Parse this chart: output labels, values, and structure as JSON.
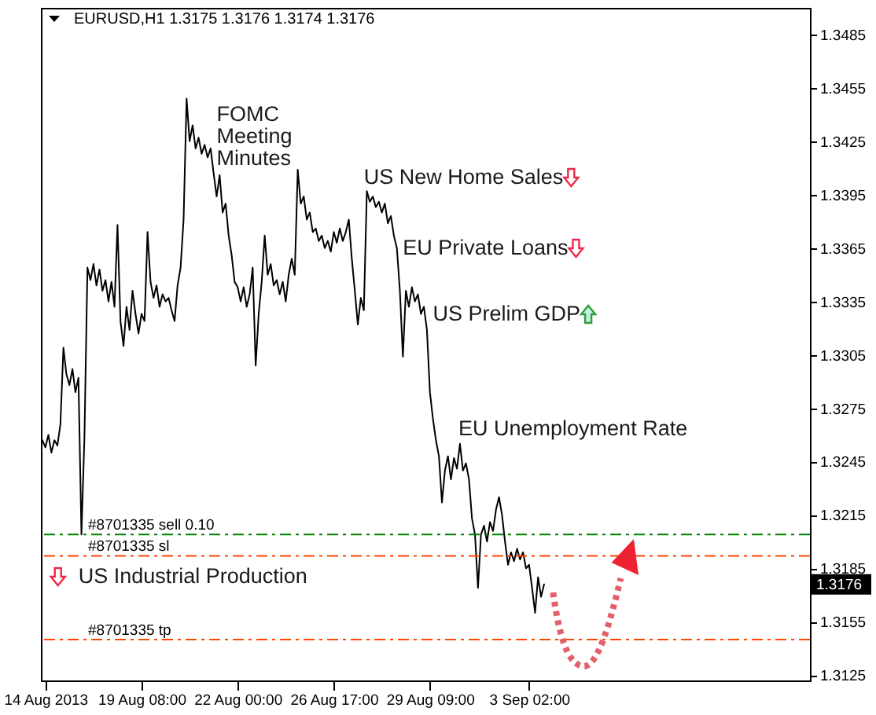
{
  "chart_data": {
    "type": "line",
    "title": "EURUSD,H1 1.3175 1.3176 1.3174 1.3176",
    "categories": [
      null,
      "14 Aug 2013",
      null,
      null,
      null,
      null,
      null,
      null,
      null,
      null,
      null,
      null,
      null,
      null,
      null,
      null,
      null,
      null,
      null,
      null,
      null,
      null,
      null,
      null,
      null,
      null,
      null,
      null,
      null,
      null,
      null,
      null,
      null,
      "19 Aug 08:00",
      null,
      null,
      null,
      null,
      null,
      null,
      null,
      null,
      null,
      null,
      null,
      null,
      null,
      null,
      null,
      null,
      null,
      null,
      null,
      null,
      null,
      null,
      null,
      null,
      null,
      null,
      null,
      null,
      null,
      null,
      null,
      "22 Aug 00:00",
      null,
      null,
      null,
      null,
      null,
      null,
      null,
      null,
      null,
      null,
      null,
      null,
      null,
      null,
      null,
      null,
      null,
      null,
      null,
      null,
      null,
      null,
      null,
      null,
      null,
      null,
      null,
      null,
      null,
      null,
      null,
      "26 Aug 17:00",
      null,
      null,
      null,
      null,
      null,
      null,
      null,
      null,
      null,
      null,
      null,
      null,
      null,
      null,
      null,
      null,
      null,
      null,
      null,
      null,
      null,
      null,
      null,
      null,
      null,
      null,
      null,
      null,
      null,
      null,
      null,
      "29 Aug 09:00",
      null,
      null,
      null,
      null,
      null,
      null,
      null,
      null,
      null,
      null,
      null,
      null,
      null,
      null,
      null,
      null,
      null,
      null,
      null,
      null,
      null,
      null,
      null,
      null,
      null,
      null,
      null,
      null,
      null,
      null,
      null,
      null,
      "3 Sep 02:00",
      null,
      null,
      null,
      null,
      null,
      null,
      null,
      null,
      null,
      null,
      null,
      null,
      null,
      null,
      null,
      null,
      null,
      null,
      null,
      null,
      null,
      null,
      null,
      null,
      null,
      null,
      null,
      null,
      null,
      null,
      null,
      null,
      null,
      null,
      null,
      null,
      null,
      null,
      null,
      null,
      null,
      null,
      null,
      null,
      null,
      null,
      null,
      null,
      null,
      null,
      null,
      null,
      null,
      null,
      null,
      null,
      null,
      null,
      null,
      null,
      null,
      null,
      null,
      null,
      null,
      null,
      null,
      null,
      null,
      null,
      null,
      null,
      null,
      null,
      null,
      null,
      null,
      null,
      null,
      null,
      null,
      null,
      null,
      null,
      null,
      null,
      null,
      null,
      null,
      null,
      null,
      null,
      null
    ],
    "series": [
      {
        "color": "#000000",
        "values": [
          1.3257,
          1.3253,
          1.326,
          1.325,
          1.3257,
          1.3254,
          1.3266,
          1.3309,
          1.3294,
          1.3288,
          1.3297,
          1.3284,
          1.3292,
          1.3204,
          1.3259,
          1.3354,
          1.3347,
          1.3356,
          1.3344,
          1.3353,
          1.3341,
          1.3347,
          1.3335,
          1.3346,
          1.3332,
          1.3378,
          1.3324,
          1.331,
          1.3332,
          1.3319,
          1.3341,
          1.3328,
          1.3317,
          1.3328,
          1.3324,
          1.3374,
          1.3346,
          1.3337,
          1.3344,
          1.3332,
          1.3339,
          1.3335,
          1.3337,
          1.333,
          1.3324,
          1.3344,
          1.3354,
          1.3381,
          1.3449,
          1.3425,
          1.3434,
          1.3421,
          1.3427,
          1.3418,
          1.3423,
          1.3416,
          1.3421,
          1.3407,
          1.3394,
          1.3406,
          1.3385,
          1.339,
          1.3372,
          1.3361,
          1.3346,
          1.3343,
          1.3335,
          1.3343,
          1.3332,
          1.3339,
          1.3354,
          1.3299,
          1.3328,
          1.3346,
          1.3372,
          1.335,
          1.3356,
          1.3344,
          1.3347,
          1.3339,
          1.3346,
          1.3335,
          1.335,
          1.3359,
          1.335,
          1.3409,
          1.339,
          1.3394,
          1.3381,
          1.3385,
          1.3374,
          1.3376,
          1.3369,
          1.3372,
          1.3365,
          1.3369,
          1.3363,
          1.3374,
          1.3368,
          1.3376,
          1.3369,
          1.3374,
          1.3381,
          1.3359,
          1.3341,
          1.3322,
          1.3337,
          1.333,
          1.3397,
          1.3391,
          1.3394,
          1.3388,
          1.3391,
          1.3385,
          1.339,
          1.3379,
          1.3383,
          1.3372,
          1.3365,
          1.3341,
          1.3304,
          1.3341,
          1.3332,
          1.3343,
          1.3335,
          1.3339,
          1.3328,
          1.3332,
          1.3319,
          1.3284,
          1.3269,
          1.3257,
          1.3248,
          1.3222,
          1.324,
          1.3248,
          1.3235,
          1.3247,
          1.3241,
          1.3255,
          1.324,
          1.3244,
          1.3235,
          1.3213,
          1.3204,
          1.3174,
          1.3204,
          1.3209,
          1.32,
          1.3211,
          1.3206,
          1.3218,
          1.3225,
          1.3215,
          1.32,
          1.3187,
          1.3194,
          1.3189,
          1.3196,
          1.319,
          1.3194,
          1.3185,
          1.3187,
          1.3174,
          1.316,
          1.318,
          1.3169,
          1.3176,
          null,
          null,
          null,
          null,
          null,
          null,
          null,
          null,
          null,
          null,
          null,
          null,
          null,
          null,
          null,
          null,
          null,
          null,
          null,
          null,
          null,
          null,
          null,
          null,
          null,
          null,
          null,
          null,
          null,
          null,
          null,
          null,
          null,
          null,
          null,
          null,
          null,
          null,
          null,
          null,
          null,
          null,
          null,
          null,
          null,
          null,
          null,
          null,
          null,
          null,
          null,
          null,
          null,
          null,
          null,
          null,
          null,
          null,
          null,
          null,
          null,
          null,
          null,
          null,
          null,
          null,
          null,
          null,
          null,
          null,
          null,
          null,
          null,
          null,
          null,
          null,
          null,
          null,
          null,
          null,
          null,
          null,
          null,
          null,
          null,
          null,
          null,
          null
        ]
      }
    ],
    "ylim": [
      1.3122,
      1.35
    ],
    "yticks": [
      1.3125,
      1.3155,
      1.3185,
      1.3215,
      1.3245,
      1.3275,
      1.3305,
      1.3335,
      1.3365,
      1.3395,
      1.3425,
      1.3455,
      1.3485
    ],
    "ref_lines": [
      {
        "axis": "y",
        "value": 1.3204,
        "label": "#8701335 sell 0.10",
        "color": "#008000",
        "line_style": "dashed"
      },
      {
        "axis": "y",
        "value": 1.3192,
        "label": "#8701335 sl",
        "color": "#ff4500",
        "line_style": "dashed"
      },
      {
        "axis": "y",
        "value": 1.3145,
        "label": "#8701335 tp",
        "color": "#ff4500",
        "line_style": "dashed"
      }
    ],
    "annotations": [
      "FOMC\nMeeting\nMinutes",
      "US New Home Sales",
      "EU Private Loans",
      "US Prelim GDP",
      "EU Unemployment Rate",
      "US Industrial Production",
      {
        "text": "1.3176",
        "y": 1.3176
      }
    ]
  }
}
